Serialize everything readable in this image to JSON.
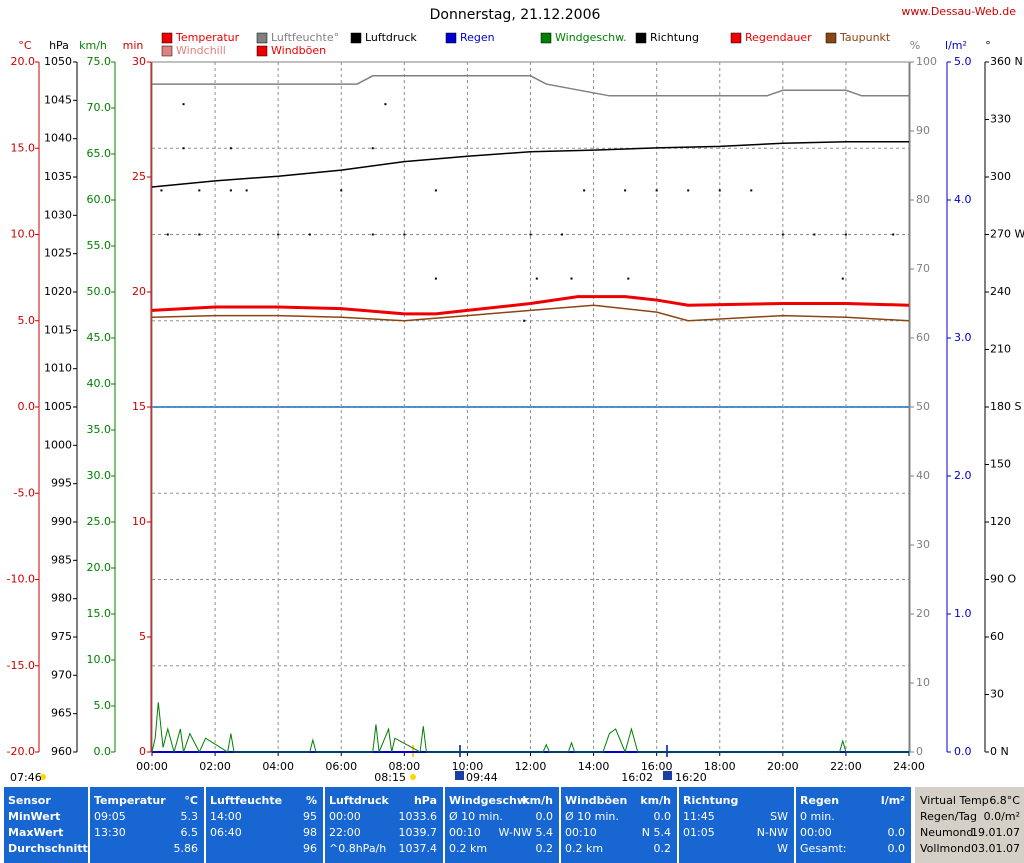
{
  "chart_data": {
    "type": "line",
    "title": "Donnerstag, 21.12.2006",
    "source": "www.Dessau-Web.de",
    "grid": true,
    "xlim": [
      0,
      24
    ],
    "xticks": [
      {
        "value": 0,
        "label": "00:00"
      },
      {
        "value": 2,
        "label": "02:00"
      },
      {
        "value": 4,
        "label": "04:00"
      },
      {
        "value": 6,
        "label": "06:00"
      },
      {
        "value": 8,
        "label": "08:00"
      },
      {
        "value": 10,
        "label": "10:00"
      },
      {
        "value": 12,
        "label": "12:00"
      },
      {
        "value": 14,
        "label": "14:00"
      },
      {
        "value": 16,
        "label": "16:00"
      },
      {
        "value": 18,
        "label": "18:00"
      },
      {
        "value": 20,
        "label": "20:00"
      },
      {
        "value": 22,
        "label": "22:00"
      },
      {
        "value": 24,
        "label": "24:00"
      }
    ],
    "axes": [
      {
        "unit": "°C",
        "color": "#cc0000",
        "lim": [
          -20,
          20
        ],
        "ticks": [
          {
            "value": -20,
            "label": "-20.0"
          },
          {
            "value": -15,
            "label": "-15.0"
          },
          {
            "value": -10,
            "label": "-10.0"
          },
          {
            "value": -5,
            "label": "-5.0"
          },
          {
            "value": 0,
            "label": "0.0"
          },
          {
            "value": 5,
            "label": "5.0"
          },
          {
            "value": 10,
            "label": "10.0"
          },
          {
            "value": 15,
            "label": "15.0"
          },
          {
            "value": 20,
            "label": "20.0"
          }
        ]
      },
      {
        "unit": "hPa",
        "color": "#000000",
        "lim": [
          960,
          1050
        ],
        "ticks": [
          960,
          965,
          970,
          975,
          980,
          985,
          990,
          995,
          1000,
          1005,
          1010,
          1015,
          1020,
          1025,
          1030,
          1035,
          1040,
          1045,
          1050
        ]
      },
      {
        "unit": "km/h",
        "color": "#008000",
        "lim": [
          0,
          75
        ],
        "ticks": [
          {
            "value": 0,
            "label": "0.0"
          },
          {
            "value": 5,
            "label": "5.0"
          },
          {
            "value": 10,
            "label": "10.0"
          },
          {
            "value": 15,
            "label": "15.0"
          },
          {
            "value": 20,
            "label": "20.0"
          },
          {
            "value": 25,
            "label": "25.0"
          },
          {
            "value": 30,
            "label": "30.0"
          },
          {
            "value": 35,
            "label": "35.0"
          },
          {
            "value": 40,
            "label": "40.0"
          },
          {
            "value": 45,
            "label": "45.0"
          },
          {
            "value": 50,
            "label": "50.0"
          },
          {
            "value": 55,
            "label": "55.0"
          },
          {
            "value": 60,
            "label": "60.0"
          },
          {
            "value": 65,
            "label": "65.0"
          },
          {
            "value": 70,
            "label": "70.0"
          },
          {
            "value": 75,
            "label": "75.0"
          }
        ]
      },
      {
        "unit": "min",
        "color": "#cc0000",
        "lim": [
          0,
          30
        ],
        "ticks": [
          0,
          5,
          10,
          15,
          20,
          25,
          30
        ]
      },
      {
        "unit": "%",
        "color": "#808080",
        "lim": [
          0,
          100
        ],
        "ticks": [
          0,
          10,
          20,
          30,
          40,
          50,
          60,
          70,
          80,
          90,
          100
        ]
      },
      {
        "unit": "l/m²",
        "color": "#0000cc",
        "lim": [
          0,
          5
        ],
        "ticks": [
          {
            "value": 0,
            "label": "0.0"
          },
          {
            "value": 1,
            "label": "1.0"
          },
          {
            "value": 2,
            "label": "2.0"
          },
          {
            "value": 3,
            "label": "3.0"
          },
          {
            "value": 4,
            "label": "4.0"
          },
          {
            "value": 5,
            "label": "5.0"
          }
        ]
      },
      {
        "unit": "°",
        "color": "#000000",
        "lim": [
          0,
          360
        ],
        "ticks": [
          {
            "value": 0,
            "label": "0 N"
          },
          30,
          60,
          {
            "value": 90,
            "label": "90 O"
          },
          120,
          150,
          {
            "value": 180,
            "label": "180 S"
          },
          210,
          240,
          {
            "value": 270,
            "label": "270 W"
          },
          300,
          330,
          {
            "value": 360,
            "label": "360 N"
          }
        ]
      }
    ],
    "series": [
      {
        "name": "Temperatur",
        "color": "#ee0000",
        "axis": "°C",
        "line_width": 3,
        "x": [
          0,
          2,
          4,
          6,
          8,
          9,
          10,
          12,
          13.5,
          15,
          16,
          17,
          20,
          22,
          24
        ],
        "values": [
          5.6,
          5.8,
          5.8,
          5.7,
          5.4,
          5.4,
          5.6,
          6.0,
          6.4,
          6.4,
          6.2,
          5.9,
          6.0,
          6.0,
          5.9
        ]
      },
      {
        "name": "Windchill",
        "color": "#e08080",
        "axis": "°C",
        "x": [],
        "values": []
      },
      {
        "name": "Luftfeuchte°",
        "color": "#808080",
        "axis": "%",
        "line_width": 1.5,
        "x": [
          0,
          6.5,
          7,
          12,
          12.5,
          14.5,
          19.5,
          20,
          22,
          22.5,
          24
        ],
        "values": [
          96.8,
          96.8,
          98,
          98,
          96.8,
          95.1,
          95.1,
          95.9,
          95.9,
          95.1,
          95.1
        ]
      },
      {
        "name": "Windböen",
        "color": "#ee0000",
        "axis": "km/h",
        "x": [],
        "values": []
      },
      {
        "name": "Luftdruck",
        "color": "#000000",
        "axis": "hPa",
        "line_width": 1.5,
        "x": [
          0,
          2,
          4,
          6,
          8,
          10,
          12,
          14,
          16,
          18,
          20,
          22,
          24
        ],
        "values": [
          1033.7,
          1034.5,
          1035.1,
          1035.9,
          1037.0,
          1037.7,
          1038.3,
          1038.5,
          1038.8,
          1039.0,
          1039.4,
          1039.6,
          1039.6
        ]
      },
      {
        "name": "Regen",
        "color": "#0000cc",
        "axis": "l/m²",
        "line_width": 2,
        "x": [
          0,
          24
        ],
        "values": [
          0,
          0
        ]
      },
      {
        "name": "Windgeschw.",
        "color": "#008000",
        "axis": "km/h",
        "line_width": 1,
        "x": [
          0,
          0.1,
          0.2,
          0.35,
          0.5,
          0.7,
          0.9,
          1.0,
          1.2,
          1.5,
          1.7,
          2.4,
          2.5,
          2.6,
          5.0,
          5.1,
          5.2,
          7.0,
          7.1,
          7.2,
          7.5,
          7.6,
          7.7,
          8.5,
          8.6,
          8.7,
          12.4,
          12.5,
          12.6,
          13.2,
          13.3,
          13.4,
          14.3,
          14.5,
          14.7,
          15.0,
          15.2,
          15.4,
          21.8,
          21.9,
          22.0,
          24
        ],
        "values": [
          0,
          1.5,
          5.4,
          0.5,
          2.5,
          0,
          2.5,
          0,
          2.0,
          0,
          1.5,
          0,
          2.0,
          0,
          0,
          1.3,
          0,
          0,
          3.0,
          0,
          2.5,
          0,
          1.5,
          0,
          2.8,
          0,
          0,
          0.8,
          0,
          0,
          1.0,
          0,
          0,
          2.0,
          2.5,
          0,
          2.5,
          0,
          0,
          1.2,
          0,
          0
        ]
      },
      {
        "name": "Richtung",
        "color": "#000000",
        "axis": "°",
        "marker": "dot",
        "x": [
          1.0,
          7.4,
          0.3,
          1.5,
          2.5,
          3,
          6,
          9,
          13.7,
          15,
          16,
          17,
          18,
          19,
          0.5,
          1.5,
          4,
          5,
          7,
          8,
          12,
          13,
          20,
          21,
          22,
          23.5,
          1,
          2.5,
          7,
          9,
          12.2,
          13.3,
          15.1,
          21.9,
          11.8
        ],
        "values": [
          338,
          338,
          293,
          293,
          293,
          293,
          293,
          293,
          293,
          293,
          293,
          293,
          293,
          293,
          270,
          270,
          270,
          270,
          270,
          270,
          270,
          270,
          270,
          270,
          270,
          270,
          315,
          315,
          315,
          247,
          247,
          247,
          247,
          247,
          225
        ]
      },
      {
        "name": "Regendauer",
        "color": "#ee0000",
        "axis": "min",
        "x": [],
        "values": []
      },
      {
        "name": "Taupunkt",
        "color": "#8b4513",
        "axis": "°C",
        "line_width": 1.5,
        "x": [
          0,
          2,
          4,
          6,
          8,
          10,
          12,
          14,
          16,
          17,
          20,
          22,
          24
        ],
        "values": [
          5.2,
          5.3,
          5.3,
          5.2,
          5.0,
          5.3,
          5.6,
          5.9,
          5.5,
          5.0,
          5.3,
          5.2,
          5.0
        ]
      }
    ],
    "sun_times": [
      "07:46",
      "08:15",
      "09:44",
      "16:02",
      "16:20"
    ]
  },
  "stats": {
    "columns": [
      {
        "title": "Sensor",
        "rows": [
          {
            "left": "MinWert"
          },
          {
            "left": "MaxWert"
          },
          {
            "left": "Durchschnitt"
          }
        ]
      },
      {
        "title": "Temperatur",
        "unit": "°C",
        "rows": [
          {
            "left": "09:05",
            "right": "5.3"
          },
          {
            "left": "13:30",
            "right": "6.5"
          },
          {
            "right": "5.86"
          }
        ]
      },
      {
        "title": "Luftfeuchte",
        "unit": "%",
        "rows": [
          {
            "left": "14:00",
            "right": "95"
          },
          {
            "left": "06:40",
            "right": "98"
          },
          {
            "right": "96"
          }
        ]
      },
      {
        "title": "Luftdruck",
        "unit": "hPa",
        "rows": [
          {
            "left": "00:00",
            "right": "1033.6"
          },
          {
            "left": "22:00",
            "right": "1039.7"
          },
          {
            "left": "^0.8hPa/h",
            "right": "1037.4"
          }
        ]
      },
      {
        "title": "Windgeschw.",
        "unit": "km/h",
        "rows": [
          {
            "left": "Ø 10 min.",
            "right": "0.0"
          },
          {
            "left": "00:10",
            "right": "W-NW 5.4"
          },
          {
            "left": "0.2 km",
            "right": "0.2"
          }
        ]
      },
      {
        "title": "Windböen",
        "unit": "km/h",
        "rows": [
          {
            "left": "Ø 10 min.",
            "right": "0.0"
          },
          {
            "left": "00:10",
            "right": "N 5.4"
          },
          {
            "left": "0.2 km",
            "right": "0.2"
          }
        ]
      },
      {
        "title": "Richtung",
        "rows": [
          {
            "left": "11:45",
            "right": "SW"
          },
          {
            "left": "01:05",
            "right": "N-NW"
          },
          {
            "right": "W"
          }
        ]
      },
      {
        "title": "Regen",
        "unit": "l/m²",
        "rows": [
          {
            "left": "0 min."
          },
          {
            "left": "00:00",
            "right": "0.0"
          },
          {
            "left": "Gesamt:",
            "right": "0.0"
          }
        ]
      }
    ],
    "info": [
      {
        "label": "Virtual Temp",
        "value": "6.8°C"
      },
      {
        "label": "Regen/Tag",
        "value": "0.0/m²"
      },
      {
        "label": "Neumond",
        "value": "19.01.07"
      },
      {
        "label": "Vollmond",
        "value": "03.01.07"
      }
    ]
  }
}
